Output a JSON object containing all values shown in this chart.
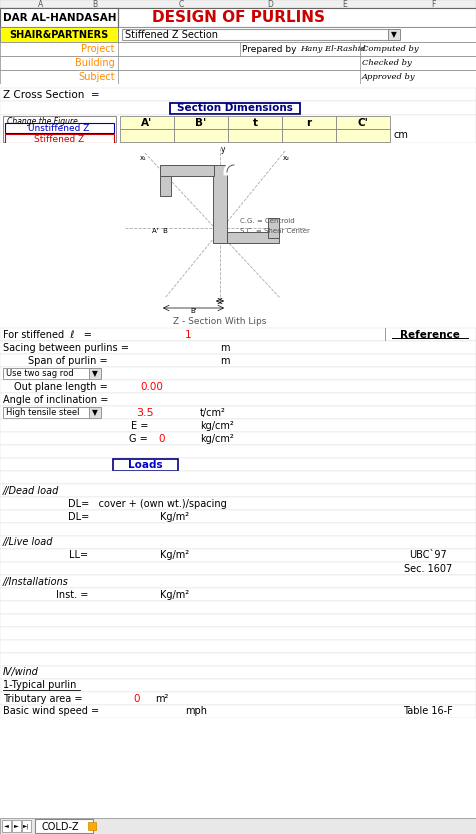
{
  "title": "DESIGN OF PURLINS",
  "company": "DAR AL-HANDASAH",
  "partner": "SHAIR&PARTNERS",
  "dropdown_text": "Stiffened Z Section",
  "project_label": "Project",
  "building_label": "Building",
  "subject_label": "Subject",
  "prepared_by": "Prepared by",
  "prepared_by_val": "Hany El-Rashid",
  "computed_by": "Computed by",
  "checked_by": "Checked by",
  "approved_by": "Approved by",
  "z_cross": "Z Cross Section  =",
  "section_dim": "Section Dimensions",
  "change_fig": "Change the Figure",
  "unstiffened_z": "Unstiffened Z",
  "stiffened_z": "Stiffened Z",
  "col_headers": [
    "A'",
    "B'",
    "t",
    "r",
    "C'"
  ],
  "cm_label": "cm",
  "fig_caption": "Z - Section With Lips",
  "for_stiffened": "For stiffened",
  "lambda_sym": "ℓ",
  "val_1": "1",
  "spacing_label": "acing between purlins =",
  "m1": "m",
  "span_label": "Span of purlin =",
  "m2": "m",
  "dropdown2": "Use two sag rod",
  "outplane_label": "Out plane length =",
  "outplane_val": "0.00",
  "angle_label": "Angle of inclination =",
  "dropdown3": "High tensile steel",
  "val_35": "3.5",
  "tcm2": "t/cm²",
  "e_label": "E =",
  "kgcm2_e": "kg/cm²",
  "g_label": "G =",
  "val_0": "0",
  "kgcm2_g": "kg/cm²",
  "loads_btn": "Loads",
  "dead_load": "//Dead load",
  "dl_eq": "DL=   cover + (own wt.)/spacing",
  "dl_kgm2": "DL=",
  "kgm2_dl": "Kg/m²",
  "live_load": "//Live load",
  "ll_label": "LL=",
  "kgm2_ll": "Kg/m²",
  "ubc97": "UBC`97",
  "sec1607": "Sec. 1607",
  "installations": "//Installations",
  "inst_label": "Inst. =",
  "kgm2_inst": "Kg/m²",
  "wind_label": "IV/wind",
  "typical_purlin": "1-Typical purlin",
  "trib_area": "Tributary area =",
  "val_trib": "0",
  "m2_trib": "m²",
  "wind_speed": "Basic wind speed =",
  "mph": "mph",
  "table16f": "Table 16-F",
  "tab_label": "COLD-Z",
  "bg_color": "#FFFFFF",
  "title_color": "#CC0000",
  "yellow_bg": "#FFFF00",
  "light_yellow": "#FFFFCC",
  "red_text": "#FF0000",
  "orange_text": "#FF8C00"
}
